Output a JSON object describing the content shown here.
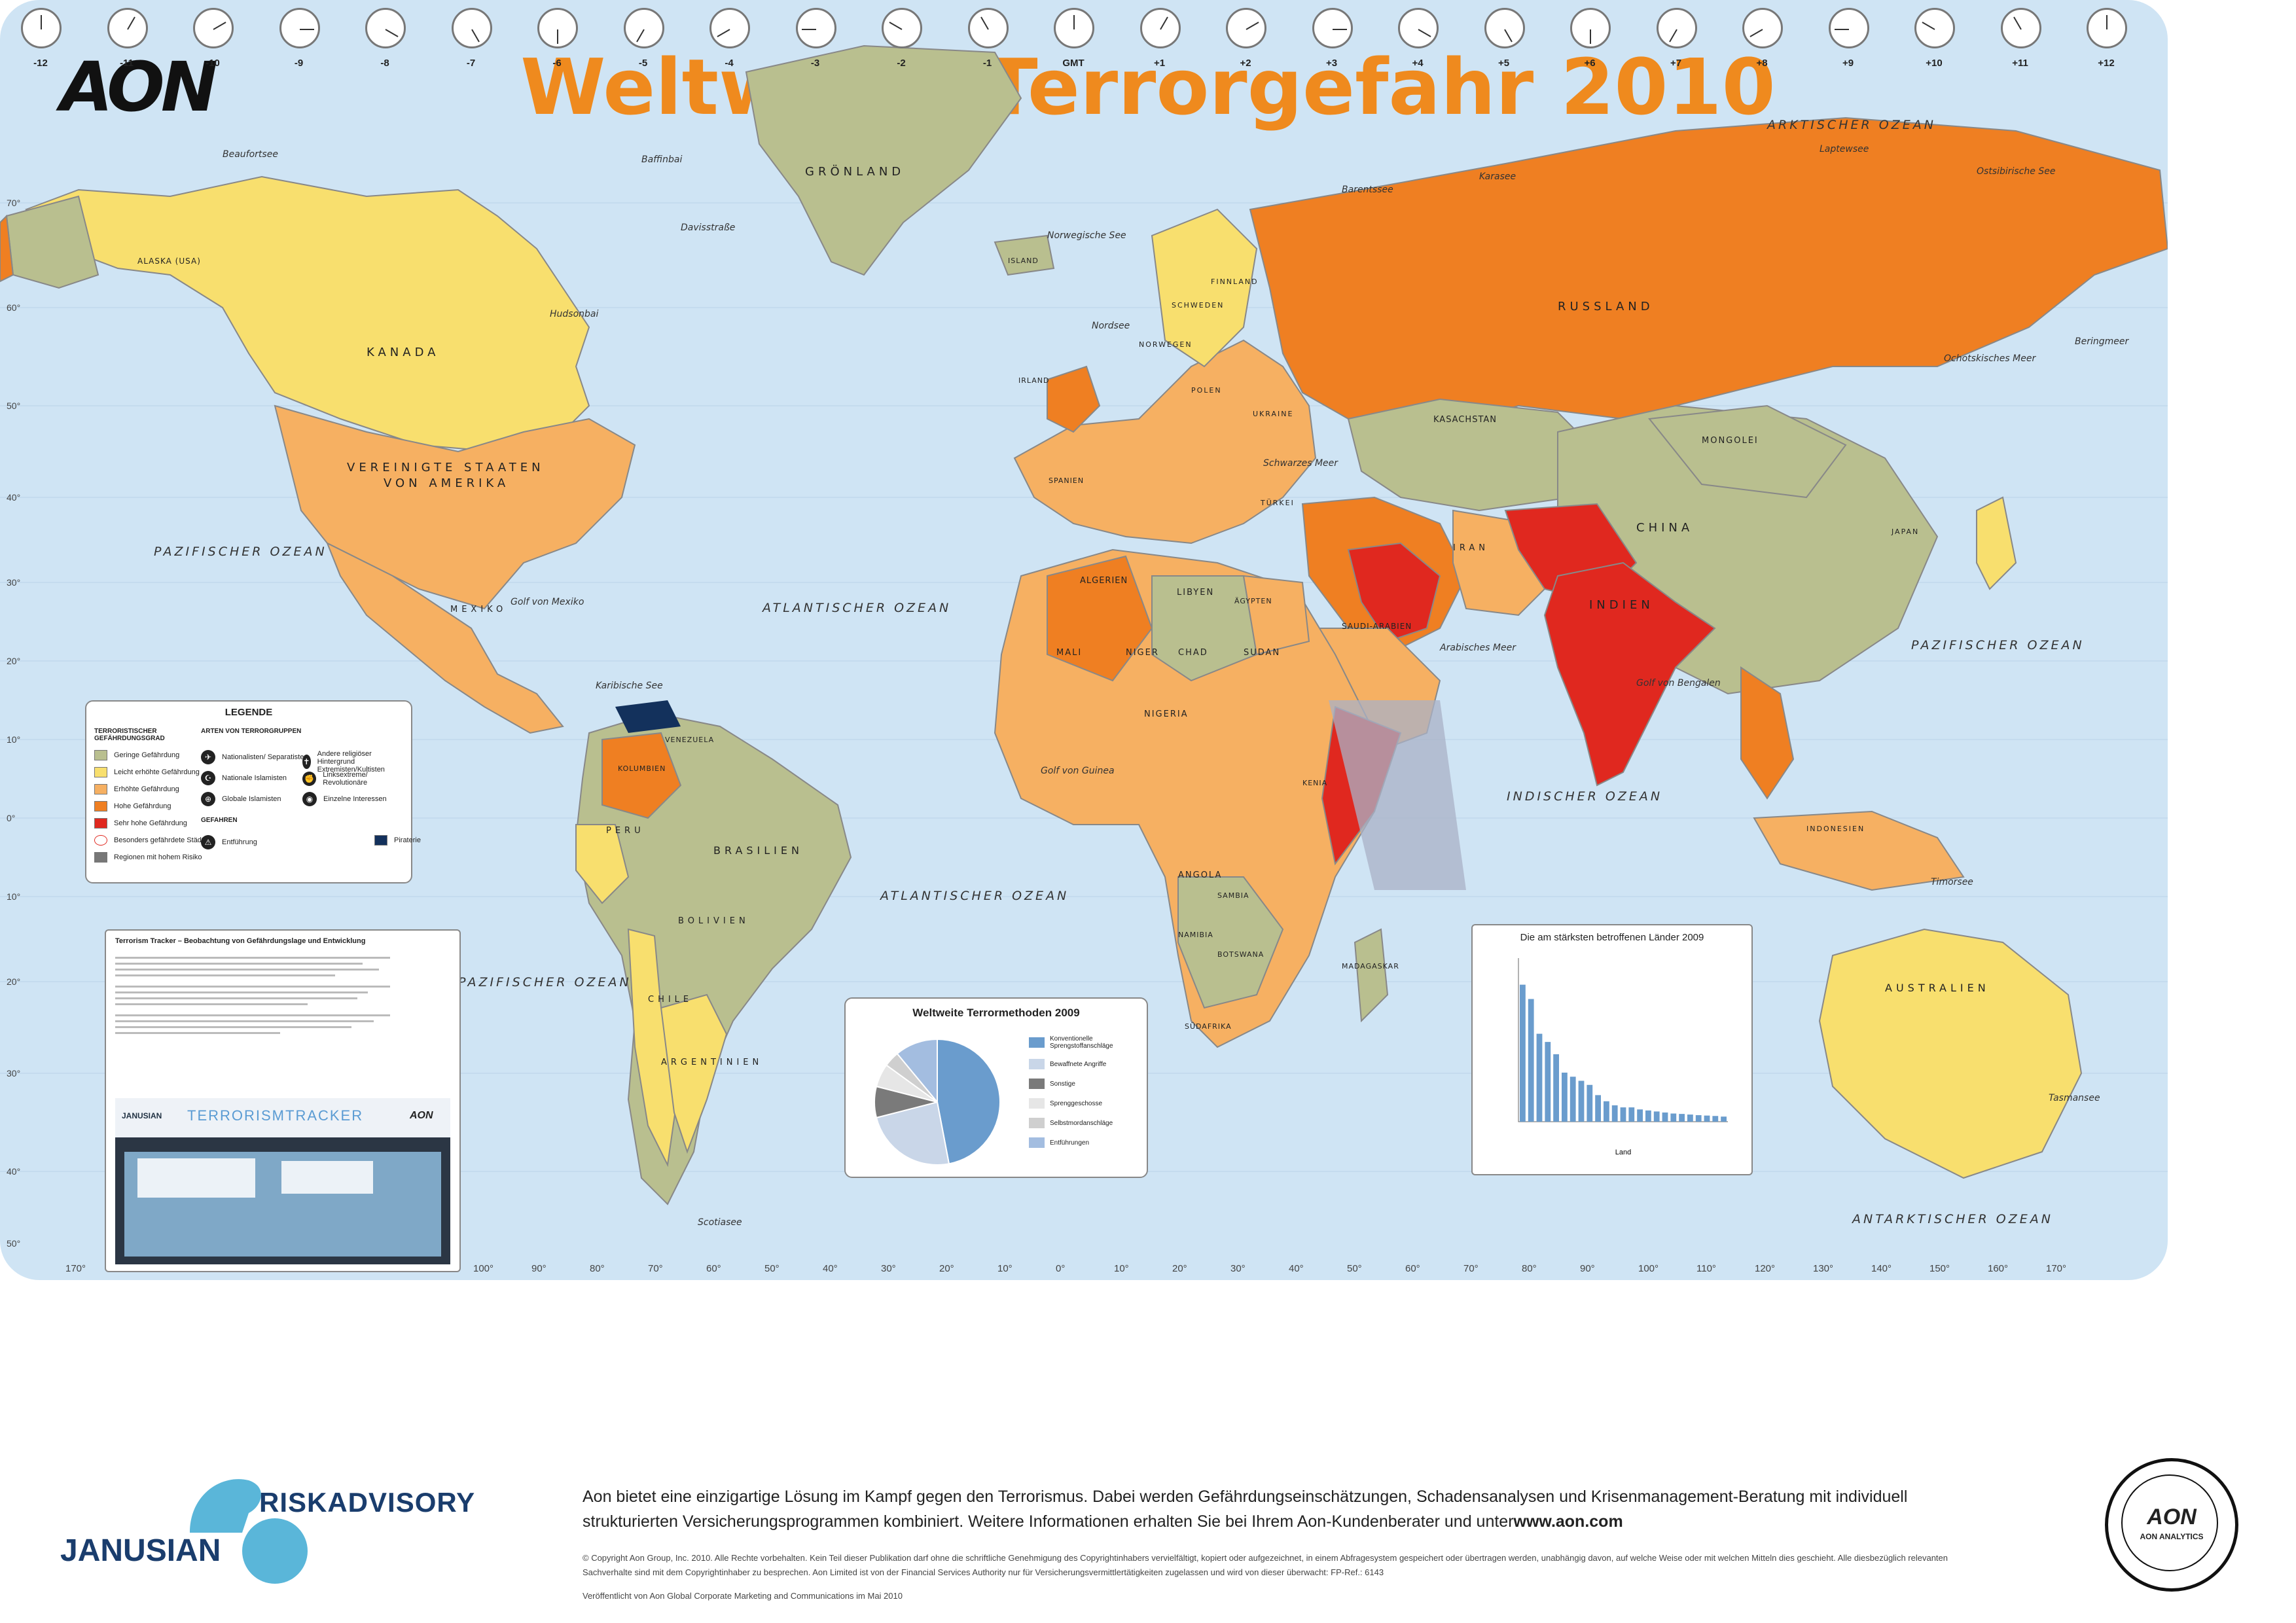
{
  "header": {
    "logo": "AON",
    "title": "Weltweite Terrorgefahr 2010"
  },
  "colors": {
    "ocean": "#cfe4f4",
    "low": "#b9bf8f",
    "slight": "#f8df6e",
    "elevated": "#f6b062",
    "high": "#ef7f22",
    "very_high": "#e0281f",
    "piracy": "#13315c",
    "title": "#ef8a1e"
  },
  "timezones": [
    "-12",
    "-11",
    "-10",
    "-9",
    "-8",
    "-7",
    "-6",
    "-5",
    "-4",
    "-3",
    "-2",
    "-1",
    "GMT",
    "+1",
    "+2",
    "+3",
    "+4",
    "+5",
    "+6",
    "+7",
    "+8",
    "+9",
    "+10",
    "+11",
    "+12"
  ],
  "longitudes": [
    "170°",
    "160°",
    "150°",
    "140°",
    "130°",
    "120°",
    "110°",
    "100°",
    "90°",
    "80°",
    "70°",
    "60°",
    "50°",
    "40°",
    "30°",
    "20°",
    "10°",
    "0°",
    "10°",
    "20°",
    "30°",
    "40°",
    "50°",
    "60°",
    "70°",
    "80°",
    "90°",
    "100°",
    "110°",
    "120°",
    "130°",
    "140°",
    "150°",
    "160°",
    "170°"
  ],
  "latitudes": [
    "70°",
    "60°",
    "50°",
    "40°",
    "30°",
    "20°",
    "10°",
    "0°",
    "10°",
    "20°",
    "30°",
    "40°",
    "50°"
  ],
  "oceans": {
    "arctic": "ARKTISCHER OZEAN",
    "pacific_nw": "PAZIFISCHER OZEAN",
    "atlantic_n": "ATLANTISCHER OZEAN",
    "atlantic_s": "ATLANTISCHER OZEAN",
    "pacific_sw": "PAZIFISCHER OZEAN",
    "pacific_e": "PAZIFISCHER OZEAN",
    "indian": "INDISCHER OZEAN",
    "antarctic": "ANTARKTISCHER OZEAN"
  },
  "seas": {
    "beaufort": "Beaufortsee",
    "baffin": "Baffinbai",
    "davis": "Davisstraße",
    "hudson": "Hudsonbai",
    "norway": "Norwegische See",
    "barents": "Barentssee",
    "kara": "Karasee",
    "laptev": "Laptewsee",
    "eastsib": "Ostsibirische See",
    "bering": "Beringmeer",
    "okhotsk": "Ochotskisches Meer",
    "mexico": "Golf von Mexiko",
    "caribbean": "Karibische See",
    "north": "Nordsee",
    "arabian": "Arabisches Meer",
    "bengal": "Golf von Bengalen",
    "guinea": "Golf von Guinea",
    "scotia": "Scotiasee",
    "tasman": "Tasmansee",
    "timor": "Timorsee",
    "blacksea": "Schwarzes Meer"
  },
  "countries": {
    "greenland": "GRÖNLAND",
    "alaska": "ALASKA (USA)",
    "canada": "KANADA",
    "usa1": "VEREINIGTE STAATEN",
    "usa2": "VON AMERIKA",
    "mexico": "MEXIKO",
    "brazil": "BRASILIEN",
    "argentina": "ARGENTINIEN",
    "bolivia": "BOLIVIEN",
    "peru": "PERU",
    "chile": "CHILE",
    "colombia": "KOLUMBIEN",
    "venezuela": "VENEZUELA",
    "russia": "RUSSLAND",
    "kazakhstan": "KASACHSTAN",
    "mongolia": "MONGOLEI",
    "china": "CHINA",
    "india": "INDIEN",
    "iran": "IRAN",
    "saudi": "SAUDI-ARABIEN",
    "algeria": "ALGERIEN",
    "libya": "LIBYEN",
    "egypt": "ÄGYPTEN",
    "niger": "NIGER",
    "chad": "CHAD",
    "sudan": "SUDAN",
    "mali": "MALI",
    "nigeria": "NIGERIA",
    "angola": "ANGOLA",
    "namibia": "NAMIBIA",
    "zambia": "SAMBIA",
    "southafrica": "SÜDAFRIKA",
    "botswana": "BOTSWANA",
    "kenya": "KENIA",
    "madagascar": "MADAGASKAR",
    "australia": "AUSTRALIEN",
    "indonesia": "INDONESIEN",
    "japan": "JAPAN",
    "ukraine": "UKRAINE",
    "finland": "FINNLAND",
    "sweden": "SCHWEDEN",
    "norway": "NORWEGEN",
    "poland": "POLEN",
    "iceland": "ISLAND",
    "ireland": "IRLAND",
    "spain": "SPANIEN",
    "turkey": "TÜRKEI"
  },
  "legend": {
    "title": "LEGENDE",
    "threat_title": "TERRORISTISCHER GEFÄHRDUNGSGRAD",
    "levels": [
      "Geringe Gefährdung",
      "Leicht erhöhte Gefährdung",
      "Erhöhte Gefährdung",
      "Hohe Gefährdung",
      "Sehr hohe Gefährdung",
      "Besonders gefährdete Städte",
      "Regionen mit hohem Risiko"
    ],
    "groups_title": "ARTEN VON TERRORGRUPPEN",
    "groups": [
      "Nationalisten/ Separatisten",
      "Andere religiöser Hintergrund Extremisten/Kultisten",
      "Nationale Islamisten",
      "Linksextreme/ Revolutionäre",
      "Globale Islamisten",
      "Einzelne Interessen"
    ],
    "hazards_title": "GEFAHREN",
    "hazards": [
      "Entführung",
      "Piraterie"
    ]
  },
  "tracker": {
    "title": "Terrorism Tracker – Beobachtung von Gefährdungslage und Entwicklung",
    "brand_left": "JANUSIAN",
    "brand_mid": "TERRORISMTRACKER",
    "brand_right": "AON"
  },
  "pie_chart": {
    "title": "Weltweite Terrormethoden 2009",
    "legend": [
      "Konventionelle Sprengstoffanschläge",
      "Bewaffnete Angriffe",
      "Sonstige",
      "Sprenggeschosse",
      "Selbstmordanschläge",
      "Entführungen"
    ]
  },
  "bar_chart": {
    "title": "Die am stärksten betroffenen Länder 2009",
    "xlabel": "Land"
  },
  "chart_data": [
    {
      "type": "pie",
      "title": "Weltweite Terrormethoden 2009",
      "labels": [
        "Konventionelle Sprengstoffanschläge",
        "Bewaffnete Angriffe",
        "Sonstige",
        "Sprenggeschosse",
        "Selbstmordanschläge",
        "Entführungen"
      ],
      "values": [
        47,
        24,
        8,
        6,
        4,
        11
      ],
      "colors": [
        "#6a9ccd",
        "#c9d6e8",
        "#7a7a7a",
        "#e6e6e6",
        "#cfcfcf",
        "#a3bde0"
      ]
    },
    {
      "type": "bar",
      "title": "Die am stärksten betroffenen Länder 2009",
      "xlabel": "Land",
      "categories": [
        "1",
        "2",
        "3",
        "4",
        "5",
        "6",
        "7",
        "8",
        "9",
        "10",
        "11",
        "12",
        "13",
        "14",
        "15",
        "16",
        "17",
        "18",
        "19",
        "20",
        "21",
        "22",
        "23",
        "24",
        "25"
      ],
      "values": [
        670,
        600,
        430,
        390,
        330,
        240,
        220,
        200,
        180,
        130,
        100,
        80,
        70,
        70,
        60,
        55,
        50,
        45,
        40,
        38,
        35,
        32,
        30,
        28,
        25
      ],
      "ylim": [
        0,
        800
      ],
      "color": "#6a9ccd"
    }
  ],
  "footer": {
    "partner1": "RISKADVISORY",
    "partner2": "JANUSIAN",
    "text": "Aon bietet eine einzigartige Lösung im Kampf gegen den Terrorismus. Dabei werden Gefährdungseinschätzungen, Schadensanalysen und Krisenmanagement-Beratung mit individuell strukturierten Versicherungsprogrammen kombiniert. Weitere Informationen erhalten Sie bei Ihrem Aon-Kundenberater und unter",
    "url": "www.aon.com",
    "copyright": "© Copyright Aon Group, Inc. 2010. Alle Rechte vorbehalten. Kein Teil dieser Publikation darf ohne die schriftliche Genehmigung des Copyrightinhabers vervielfältigt, kopiert oder aufgezeichnet, in einem Abfragesystem gespeichert oder übertragen werden, unabhängig davon, auf welche Weise oder mit welchen Mitteln dies geschieht. Alle diesbezüglich relevanten Sachverhalte sind mit dem Copyrightinhaber zu besprechen. Aon Limited ist von der Financial Services Authority nur für Versicherungsvermittlertätigkeiten zugelassen und wird von dieser überwacht: FP-Ref.: 6143",
    "published": "Veröffentlicht von Aon Global Corporate Marketing and Communications im Mai 2010",
    "seal": "AON ANALYTICS"
  }
}
